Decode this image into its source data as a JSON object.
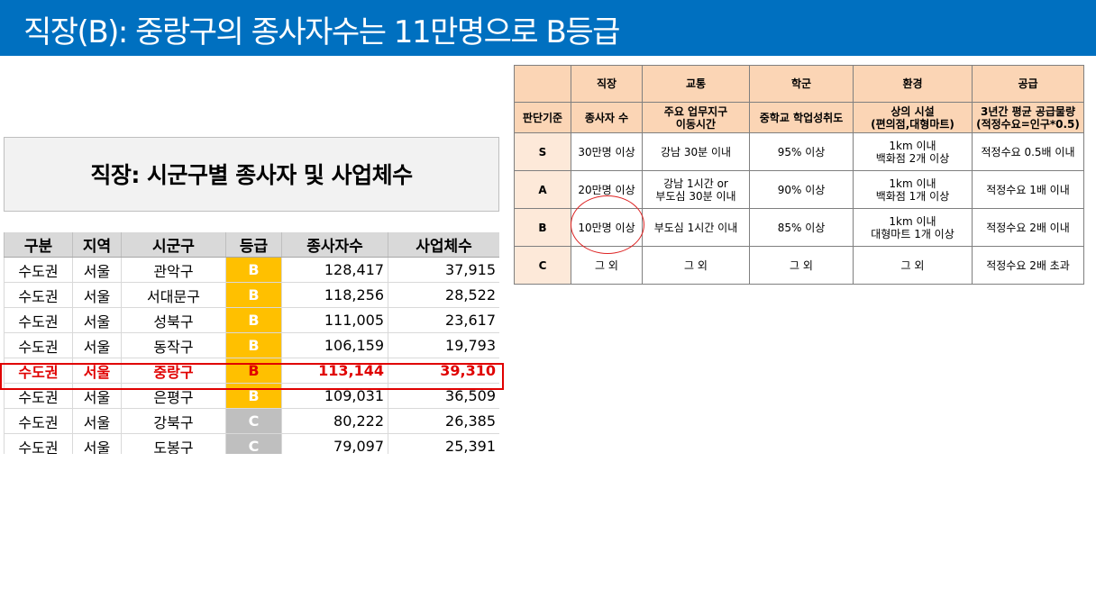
{
  "title": "직장(B): 중랑구의 종사자수는 11만명으로 B등급",
  "left_table": {
    "title": "직장: 시군구별 종사자 및 사업체수",
    "headers": [
      "구분",
      "지역",
      "시군구",
      "등급",
      "종사자수",
      "사업체수"
    ],
    "rows": [
      {
        "region": "수도권",
        "city": "서울",
        "district": "관악구",
        "grade": "B",
        "workers": "128,417",
        "businesses": "37,915",
        "highlight": false
      },
      {
        "region": "수도권",
        "city": "서울",
        "district": "서대문구",
        "grade": "B",
        "workers": "118,256",
        "businesses": "28,522",
        "highlight": false
      },
      {
        "region": "수도권",
        "city": "서울",
        "district": "성북구",
        "grade": "B",
        "workers": "111,005",
        "businesses": "23,617",
        "highlight": false
      },
      {
        "region": "수도권",
        "city": "서울",
        "district": "동작구",
        "grade": "B",
        "workers": "106,159",
        "businesses": "19,793",
        "highlight": false
      },
      {
        "region": "수도권",
        "city": "서울",
        "district": "중랑구",
        "grade": "B",
        "workers": "113,144",
        "businesses": "39,310",
        "highlight": true
      },
      {
        "region": "수도권",
        "city": "서울",
        "district": "은평구",
        "grade": "B",
        "workers": "109,031",
        "businesses": "36,509",
        "highlight": false
      },
      {
        "region": "수도권",
        "city": "서울",
        "district": "강북구",
        "grade": "C",
        "workers": "80,222",
        "businesses": "26,385",
        "highlight": false
      },
      {
        "region": "수도권",
        "city": "서울",
        "district": "도봉구",
        "grade": "C",
        "workers": "79,097",
        "businesses": "25,391",
        "highlight": false
      }
    ]
  },
  "criteria_table": {
    "categories": [
      "직장",
      "교통",
      "학군",
      "환경",
      "공급"
    ],
    "criteria_label": "판단기준",
    "criteria": [
      "종사자 수",
      "주요 업무지구\n이동시간",
      "중학교 학업성취도",
      "상의 시설\n(편의점,대형마트)",
      "3년간 평균 공급물량\n(적정수요=인구*0.5)"
    ],
    "levels": [
      {
        "level": "S",
        "values": [
          "30만명 이상",
          "강남 30분 이내",
          "95% 이상",
          "1km 이내\n백화점 2개 이상",
          "적정수요 0.5배 이내"
        ]
      },
      {
        "level": "A",
        "values": [
          "20만명 이상",
          "강남 1시간 or\n부도심 30분 이내",
          "90% 이상",
          "1km 이내\n백화점 1개 이상",
          "적정수요 1배 이내"
        ]
      },
      {
        "level": "B",
        "values": [
          "10만명 이상",
          "부도심 1시간 이내",
          "85% 이상",
          "1km 이내\n대형마트 1개 이상",
          "적정수요 2배 이내"
        ]
      },
      {
        "level": "C",
        "values": [
          "그 외",
          "그 외",
          "그 외",
          "그 외",
          "적정수요 2배 초과"
        ]
      }
    ]
  },
  "colors": {
    "title_bar": "#0070c0",
    "grade_b": "#ffc000",
    "grade_c": "#bfbfbf",
    "highlight": "#e00000",
    "criteria_header": "#fbd5b5",
    "criteria_level": "#fde9d9"
  }
}
